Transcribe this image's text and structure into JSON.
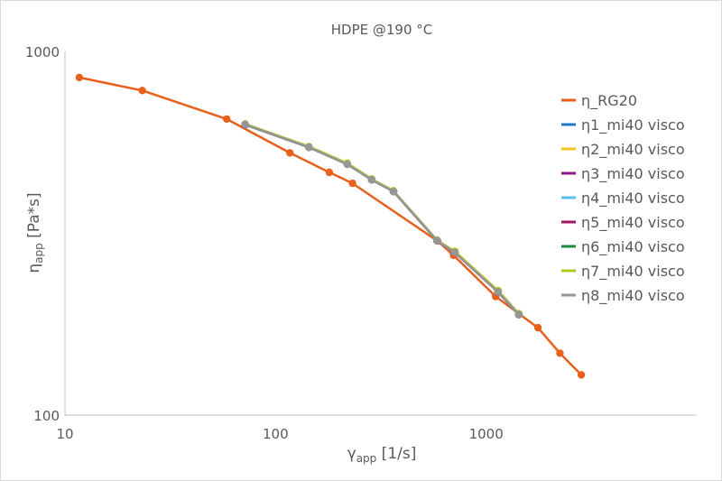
{
  "chart_data": {
    "type": "line",
    "title": "HDPE @190 °C",
    "xlabel": {
      "main": "γ",
      "sub": "app",
      "unit": " [1/s]"
    },
    "ylabel": {
      "main": "η",
      "sub": "app",
      "unit": " [Pa*s]"
    },
    "x_scale": "log",
    "y_scale": "log",
    "xlim": [
      10,
      10000
    ],
    "ylim": [
      100,
      1000
    ],
    "x_ticks": [
      10,
      100,
      1000
    ],
    "x_tick_labels": [
      "10",
      "100",
      "1000"
    ],
    "y_ticks": [
      100,
      1000
    ],
    "y_tick_labels": [
      "100",
      "1000"
    ],
    "grid": false,
    "legend_position": "right",
    "series": [
      {
        "name": "η_RG20",
        "color": "#E8601C",
        "x": [
          11.7,
          23.3,
          58.6,
          117,
          180,
          232,
          588,
          700,
          1110,
          1760,
          2240,
          2830
        ],
        "y": [
          848,
          781,
          652,
          526,
          465,
          434,
          301,
          275,
          212,
          174,
          148,
          129
        ]
      },
      {
        "name": "η1_mi40 visco",
        "color": "#1F77C8",
        "x": [
          71.7,
          144,
          219,
          286,
          363,
          584,
          710,
          1140,
          1430
        ],
        "y": [
          629,
          545,
          490,
          444,
          412,
          302,
          280,
          218,
          189
        ]
      },
      {
        "name": "η2_mi40 visco",
        "color": "#F5C518",
        "x": [
          71.7,
          144,
          219,
          286,
          363,
          584,
          710,
          1140,
          1430
        ],
        "y": [
          630,
          546,
          490,
          445,
          412,
          302,
          281,
          219,
          189
        ]
      },
      {
        "name": "η3_mi40 visco",
        "color": "#8B1A89",
        "x": [
          71.7,
          144,
          219,
          286,
          363,
          584,
          710,
          1140,
          1430
        ],
        "y": [
          629,
          545,
          490,
          444,
          412,
          302,
          280,
          218,
          189
        ]
      },
      {
        "name": "η4_mi40 visco",
        "color": "#5BC0EB",
        "x": [
          71.7,
          144,
          219,
          286,
          363,
          584,
          710,
          1140,
          1430
        ],
        "y": [
          629,
          545,
          490,
          444,
          412,
          302,
          280,
          218,
          189
        ]
      },
      {
        "name": "η5_mi40 visco",
        "color": "#A0166B",
        "x": [
          71.7,
          144,
          219,
          286,
          363,
          584,
          710,
          1140,
          1430
        ],
        "y": [
          629,
          545,
          490,
          444,
          412,
          302,
          280,
          218,
          189
        ]
      },
      {
        "name": "η6_mi40 visco",
        "color": "#1E8C3C",
        "x": [
          71.7,
          144,
          219,
          286,
          363,
          584,
          710,
          1140,
          1430
        ],
        "y": [
          630,
          546,
          491,
          445,
          413,
          302,
          281,
          219,
          190
        ]
      },
      {
        "name": "η7_mi40 visco",
        "color": "#B4C81E",
        "x": [
          71.7,
          144,
          219,
          286,
          363,
          584,
          710,
          1140,
          1430
        ],
        "y": [
          632,
          548,
          493,
          446,
          414,
          303,
          282,
          220,
          190
        ]
      },
      {
        "name": "η8_mi40 visco",
        "color": "#969696",
        "x": [
          71.7,
          144,
          219,
          286,
          363,
          584,
          710,
          1140,
          1430
        ],
        "y": [
          630,
          545,
          489,
          444,
          412,
          302,
          280,
          218,
          189
        ]
      }
    ]
  }
}
